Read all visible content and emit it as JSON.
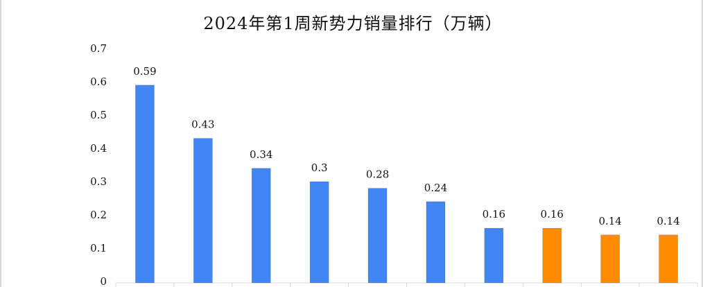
{
  "chart_data": {
    "type": "bar",
    "title": "2024年第1周新势力销量排行（万辆）",
    "xlabel": "",
    "ylabel": "",
    "ylim": [
      0,
      0.7
    ],
    "yticks": [
      "0",
      "0.1",
      "0.2",
      "0.3",
      "0.4",
      "0.5",
      "0.6",
      "0.7"
    ],
    "grid": false,
    "values": [
      0.59,
      0.43,
      0.34,
      0.3,
      0.28,
      0.24,
      0.16,
      0.16,
      0.14,
      0.14
    ],
    "value_labels": [
      "0.59",
      "0.43",
      "0.34",
      "0.3",
      "0.28",
      "0.24",
      "0.16",
      "0.16",
      "0.14",
      "0.14"
    ],
    "bar_colors": [
      "#4285f4",
      "#4285f4",
      "#4285f4",
      "#4285f4",
      "#4285f4",
      "#4285f4",
      "#4285f4",
      "#ff8c00",
      "#ff8c00",
      "#ff8c00"
    ]
  }
}
